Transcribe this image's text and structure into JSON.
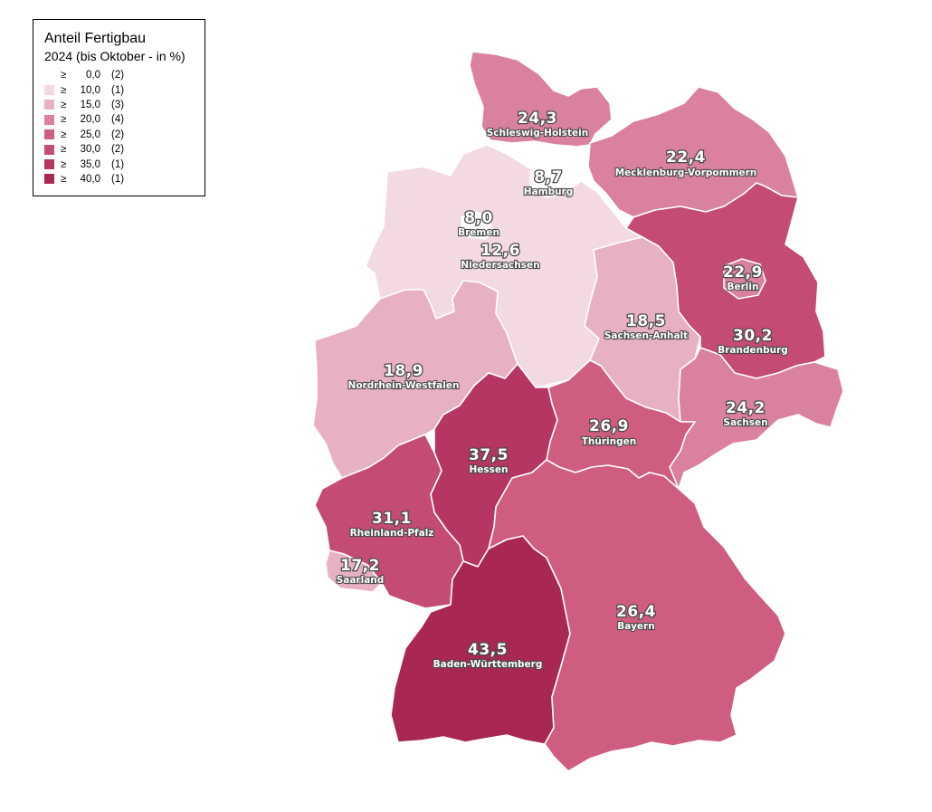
{
  "legend": {
    "title": "Anteil Fertigbau",
    "subtitle": "2024 (bis Oktober - in %)",
    "classes": [
      {
        "symbol": "≥",
        "value": "0,0",
        "count": "(2)",
        "color": "#ffffff"
      },
      {
        "symbol": "≥",
        "value": "10,0",
        "count": "(1)",
        "color": "#f3d9e1"
      },
      {
        "symbol": "≥",
        "value": "15,0",
        "count": "(3)",
        "color": "#e8b1c2"
      },
      {
        "symbol": "≥",
        "value": "20,0",
        "count": "(4)",
        "color": "#da819d"
      },
      {
        "symbol": "≥",
        "value": "25,0",
        "count": "(2)",
        "color": "#cf5d80"
      },
      {
        "symbol": "≥",
        "value": "30,0",
        "count": "(2)",
        "color": "#c44b71"
      },
      {
        "symbol": "≥",
        "value": "35,0",
        "count": "(1)",
        "color": "#b53563"
      },
      {
        "symbol": "≥",
        "value": "40,0",
        "count": "(1)",
        "color": "#a82852"
      }
    ]
  },
  "states": {
    "schleswig_holstein": {
      "name": "Schleswig-Holstein",
      "value": "24,3",
      "color": "#da819d"
    },
    "hamburg": {
      "name": "Hamburg",
      "value": "8,7",
      "color": "#ffffff"
    },
    "mecklenburg_vorpommern": {
      "name": "Mecklenburg-Vorpommern",
      "value": "22,4",
      "color": "#da819d"
    },
    "bremen": {
      "name": "Bremen",
      "value": "8,0",
      "color": "#ffffff"
    },
    "niedersachsen": {
      "name": "Niedersachsen",
      "value": "12,6",
      "color": "#f3d9e1"
    },
    "berlin": {
      "name": "Berlin",
      "value": "22,9",
      "color": "#da819d"
    },
    "brandenburg": {
      "name": "Brandenburg",
      "value": "30,2",
      "color": "#c44b71"
    },
    "sachsen_anhalt": {
      "name": "Sachsen-Anhalt",
      "value": "18,5",
      "color": "#e8b1c2"
    },
    "nordrhein_westfalen": {
      "name": "Nordrhein-Westfalen",
      "value": "18,9",
      "color": "#e8b1c2"
    },
    "sachsen": {
      "name": "Sachsen",
      "value": "24,2",
      "color": "#da819d"
    },
    "thueringen": {
      "name": "Thüringen",
      "value": "26,9",
      "color": "#cf5d80"
    },
    "hessen": {
      "name": "Hessen",
      "value": "37,5",
      "color": "#b53563"
    },
    "rheinland_pfalz": {
      "name": "Rheinland-Pfalz",
      "value": "31,1",
      "color": "#c44b71"
    },
    "saarland": {
      "name": "Saarland",
      "value": "17,2",
      "color": "#e8b1c2"
    },
    "bayern": {
      "name": "Bayern",
      "value": "26,4",
      "color": "#cf5d80"
    },
    "baden_wuerttemberg": {
      "name": "Baden-Württemberg",
      "value": "43,5",
      "color": "#a82852"
    }
  }
}
